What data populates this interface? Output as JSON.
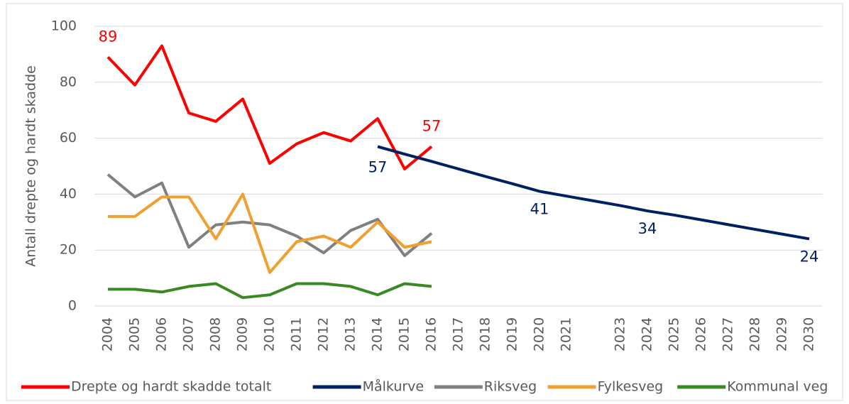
{
  "chart_data": {
    "type": "line",
    "y_label": "Antall drepte og hardt skadde",
    "categories": [
      "2004",
      "2005",
      "2006",
      "2007",
      "2008",
      "2009",
      "2010",
      "2011",
      "2012",
      "2013",
      "2014",
      "2015",
      "2016",
      "2017",
      "2018",
      "2019",
      "2020",
      "2021",
      null,
      "2023",
      "2024",
      "2025",
      "2026",
      "2027",
      "2028",
      "2029",
      "2030"
    ],
    "ylim": [
      0,
      100
    ],
    "yticks": [
      0,
      20,
      40,
      60,
      80,
      100
    ],
    "grid": true,
    "legend": "bottom",
    "series": [
      {
        "name": "Drepte og hardt skadde totalt",
        "color": "#ff0000",
        "data_labels": [
          0,
          12
        ],
        "values": [
          89,
          79,
          93,
          69,
          66,
          74,
          51,
          58,
          62,
          59,
          67,
          49,
          57,
          null,
          null,
          null,
          null,
          null,
          null,
          null,
          null,
          null,
          null,
          null,
          null,
          null,
          null
        ]
      },
      {
        "name": "Målkurve",
        "color": "#002060",
        "data_labels": [
          10,
          16,
          20,
          26
        ],
        "values": [
          null,
          null,
          null,
          null,
          null,
          null,
          null,
          null,
          null,
          null,
          57,
          54.3,
          51.7,
          49,
          46.3,
          43.7,
          41,
          39.3,
          37.6,
          35.9,
          34,
          32.5,
          30.8,
          29.1,
          27.4,
          25.7,
          24
        ]
      },
      {
        "name": "Riksveg",
        "color": "#808080",
        "values": [
          47,
          39,
          44,
          21,
          29,
          30,
          29,
          25,
          19,
          27,
          31,
          18,
          26,
          null,
          null,
          null,
          null,
          null,
          null,
          null,
          null,
          null,
          null,
          null,
          null,
          null,
          null
        ]
      },
      {
        "name": "Fylkesveg",
        "color": "#f0a030",
        "values": [
          32,
          32,
          39,
          39,
          24,
          40,
          12,
          23,
          25,
          21,
          30,
          21,
          23,
          null,
          null,
          null,
          null,
          null,
          null,
          null,
          null,
          null,
          null,
          null,
          null,
          null,
          null
        ]
      },
      {
        "name": "Kommunal veg",
        "color": "#3a8a24",
        "values": [
          6,
          6,
          5,
          7,
          8,
          3,
          4,
          8,
          8,
          7,
          4,
          8,
          7,
          null,
          null,
          null,
          null,
          null,
          null,
          null,
          null,
          null,
          null,
          null,
          null,
          null,
          null
        ]
      }
    ]
  }
}
